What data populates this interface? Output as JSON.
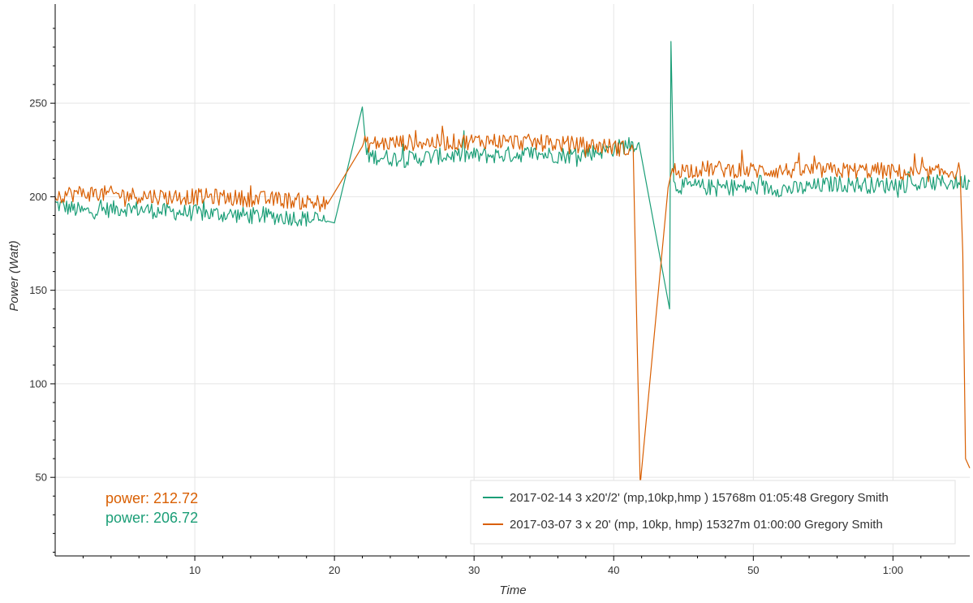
{
  "chart_data": {
    "type": "line",
    "title": "",
    "xlabel": "Time",
    "ylabel": "Power (Watt)",
    "xlim_minutes": [
      0,
      65.5
    ],
    "ylim": [
      8,
      303
    ],
    "grid": true,
    "legend_position": "bottom-right",
    "x_ticks": [
      {
        "value": 10,
        "label": "10"
      },
      {
        "value": 20,
        "label": "20"
      },
      {
        "value": 30,
        "label": "30"
      },
      {
        "value": 40,
        "label": "40"
      },
      {
        "value": 50,
        "label": "50"
      },
      {
        "value": 60,
        "label": "1:00"
      }
    ],
    "y_ticks": [
      {
        "value": 50,
        "label": "50"
      },
      {
        "value": 100,
        "label": "100"
      },
      {
        "value": 150,
        "label": "150"
      },
      {
        "value": 200,
        "label": "200"
      },
      {
        "value": 250,
        "label": "250"
      }
    ],
    "series": [
      {
        "name": "2017-02-14 3 x20'/2' (mp,10kp,hmp ) 15768m 01:05:48 Gregory Smith",
        "color": "#1b9e77",
        "points": [
          [
            0,
            196
          ],
          [
            2,
            192
          ],
          [
            5,
            194
          ],
          [
            8,
            192
          ],
          [
            11,
            191
          ],
          [
            14,
            190
          ],
          [
            17,
            189
          ],
          [
            19.5,
            187
          ],
          [
            20,
            186
          ],
          [
            22,
            248
          ],
          [
            22.3,
            222
          ],
          [
            25,
            220
          ],
          [
            28,
            222
          ],
          [
            31,
            222
          ],
          [
            34,
            223
          ],
          [
            37,
            222
          ],
          [
            39.5,
            225
          ],
          [
            41.8,
            229
          ],
          [
            44,
            140
          ],
          [
            44.1,
            283
          ],
          [
            44.3,
            206
          ],
          [
            47,
            205
          ],
          [
            50,
            205
          ],
          [
            53,
            204
          ],
          [
            56,
            207
          ],
          [
            59,
            206
          ],
          [
            62,
            207
          ],
          [
            65.5,
            208
          ]
        ]
      },
      {
        "name": "2017-03-07 3 x 20' (mp, 10kp, hmp) 15327m 01:00:00 Gregory Smith",
        "color": "#d95f02",
        "points": [
          [
            0,
            201
          ],
          [
            2,
            202
          ],
          [
            5,
            201
          ],
          [
            8,
            200
          ],
          [
            11,
            200
          ],
          [
            14,
            199
          ],
          [
            17,
            198
          ],
          [
            19.5,
            196
          ],
          [
            22,
            228
          ],
          [
            25,
            229
          ],
          [
            28,
            229
          ],
          [
            31,
            230
          ],
          [
            34,
            229
          ],
          [
            37,
            228
          ],
          [
            39.5,
            227
          ],
          [
            41.4,
            225
          ],
          [
            41.6,
            150
          ],
          [
            41.9,
            46
          ],
          [
            43.9,
            205
          ],
          [
            44.2,
            214
          ],
          [
            47,
            215
          ],
          [
            50,
            214
          ],
          [
            53,
            214
          ],
          [
            56,
            214
          ],
          [
            59,
            214
          ],
          [
            62,
            212
          ],
          [
            64.8,
            214
          ],
          [
            65,
            170
          ],
          [
            65.2,
            60
          ],
          [
            65.5,
            55
          ]
        ]
      }
    ]
  },
  "readouts": [
    {
      "text": "power: 212.72",
      "color": "#d95f02"
    },
    {
      "text": "power: 206.72",
      "color": "#1b9e77"
    }
  ]
}
